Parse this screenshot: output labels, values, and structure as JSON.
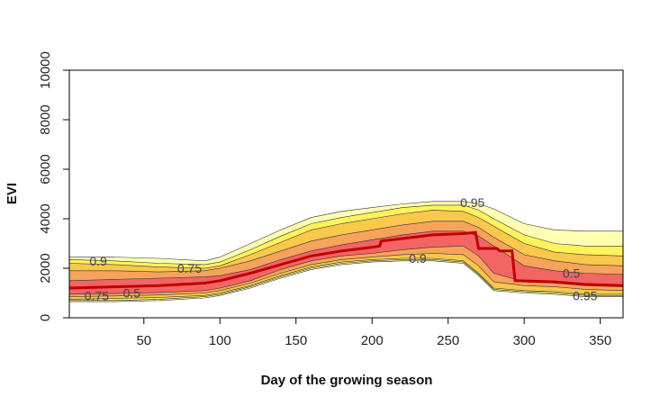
{
  "chart_data": {
    "type": "area",
    "title": "",
    "xlabel": "Day of the growing season",
    "ylabel": "EVI",
    "xlim": [
      1,
      365
    ],
    "ylim": [
      0,
      10000
    ],
    "x_ticks": [
      50,
      100,
      150,
      200,
      250,
      300,
      350
    ],
    "y_ticks": [
      0,
      2000,
      4000,
      6000,
      8000,
      10000
    ],
    "grid": false,
    "legend": "none",
    "colors": {
      "band_outer": "#FFFFB2",
      "band_095": "#FFF35C",
      "band_09": "#F9C84C",
      "band_075": "#F7A35C",
      "band_05": "#F36464",
      "contour_line": "#333333",
      "median_line": "#C00000"
    },
    "bands": [
      {
        "level": "outer",
        "x": [
          1,
          30,
          60,
          90,
          100,
          120,
          140,
          160,
          180,
          200,
          220,
          240,
          260,
          270,
          280,
          300,
          320,
          340,
          365
        ],
        "upper": [
          2450,
          2450,
          2400,
          2300,
          2450,
          3000,
          3550,
          4050,
          4300,
          4450,
          4600,
          4700,
          4700,
          4600,
          4400,
          3800,
          3550,
          3500,
          3500
        ],
        "lower": [
          650,
          650,
          700,
          800,
          900,
          1200,
          1600,
          1950,
          2150,
          2250,
          2300,
          2300,
          2200,
          1700,
          1100,
          1000,
          950,
          850,
          850
        ]
      },
      {
        "level": "0.95",
        "x": [
          1,
          30,
          60,
          90,
          100,
          120,
          140,
          160,
          180,
          200,
          220,
          240,
          260,
          270,
          280,
          300,
          320,
          340,
          365
        ],
        "upper": [
          2350,
          2300,
          2200,
          2150,
          2250,
          2750,
          3300,
          3800,
          4050,
          4250,
          4450,
          4550,
          4550,
          4350,
          4000,
          3350,
          3000,
          2900,
          2900
        ],
        "lower": [
          700,
          700,
          750,
          850,
          950,
          1250,
          1650,
          2000,
          2200,
          2300,
          2350,
          2350,
          2250,
          1750,
          1150,
          1050,
          1000,
          900,
          900
        ]
      },
      {
        "level": "0.9",
        "x": [
          1,
          30,
          60,
          90,
          100,
          120,
          140,
          160,
          180,
          200,
          220,
          240,
          260,
          270,
          280,
          300,
          320,
          340,
          365
        ],
        "upper": [
          2200,
          2150,
          2050,
          2000,
          2100,
          2550,
          3050,
          3550,
          3800,
          4000,
          4200,
          4350,
          4300,
          4050,
          3700,
          3000,
          2650,
          2550,
          2500
        ],
        "lower": [
          750,
          780,
          820,
          900,
          1000,
          1300,
          1700,
          2050,
          2250,
          2350,
          2400,
          2400,
          2300,
          1800,
          1200,
          1100,
          1050,
          950,
          950
        ]
      },
      {
        "level": "0.75",
        "x": [
          1,
          30,
          60,
          90,
          100,
          120,
          140,
          160,
          180,
          200,
          220,
          240,
          260,
          270,
          280,
          300,
          320,
          340,
          365
        ],
        "upper": [
          1900,
          1900,
          1850,
          1900,
          2000,
          2300,
          2700,
          3100,
          3350,
          3550,
          3750,
          3900,
          3900,
          3650,
          3250,
          2550,
          2300,
          2150,
          2100
        ],
        "lower": [
          850,
          880,
          920,
          1000,
          1100,
          1400,
          1800,
          2150,
          2350,
          2450,
          2550,
          2600,
          2550,
          2100,
          1450,
          1300,
          1250,
          1150,
          1100
        ]
      },
      {
        "level": "0.5",
        "x": [
          1,
          30,
          60,
          90,
          100,
          120,
          140,
          160,
          180,
          200,
          220,
          240,
          260,
          270,
          280,
          300,
          320,
          340,
          365
        ],
        "upper": [
          1500,
          1550,
          1600,
          1650,
          1700,
          1950,
          2350,
          2700,
          2950,
          3150,
          3350,
          3500,
          3500,
          3300,
          2900,
          2100,
          1900,
          1800,
          1750
        ],
        "lower": [
          950,
          980,
          1020,
          1100,
          1200,
          1500,
          1950,
          2300,
          2500,
          2600,
          2750,
          2850,
          2900,
          2500,
          1800,
          1450,
          1400,
          1300,
          1250
        ]
      }
    ],
    "median_line": {
      "x": [
        1,
        30,
        60,
        90,
        100,
        120,
        140,
        160,
        180,
        200,
        205,
        206,
        220,
        240,
        260,
        268,
        270,
        282,
        284,
        292,
        294,
        320,
        340,
        365
      ],
      "y": [
        1200,
        1250,
        1300,
        1400,
        1500,
        1800,
        2150,
        2500,
        2700,
        2850,
        2900,
        3100,
        3200,
        3350,
        3400,
        3450,
        2800,
        2800,
        2700,
        2700,
        1500,
        1450,
        1350,
        1300
      ]
    },
    "contour_labels": [
      {
        "text": "0.9",
        "x": 20,
        "y": 2300
      },
      {
        "text": "0.75",
        "x": 80,
        "y": 2000
      },
      {
        "text": "0.75",
        "x": 19,
        "y": 900
      },
      {
        "text": "0.5",
        "x": 42,
        "y": 1000
      },
      {
        "text": "0.95",
        "x": 266,
        "y": 4650
      },
      {
        "text": "0.9",
        "x": 230,
        "y": 2400
      },
      {
        "text": "0.5",
        "x": 331,
        "y": 1800
      },
      {
        "text": "0.95",
        "x": 340,
        "y": 900
      }
    ]
  }
}
